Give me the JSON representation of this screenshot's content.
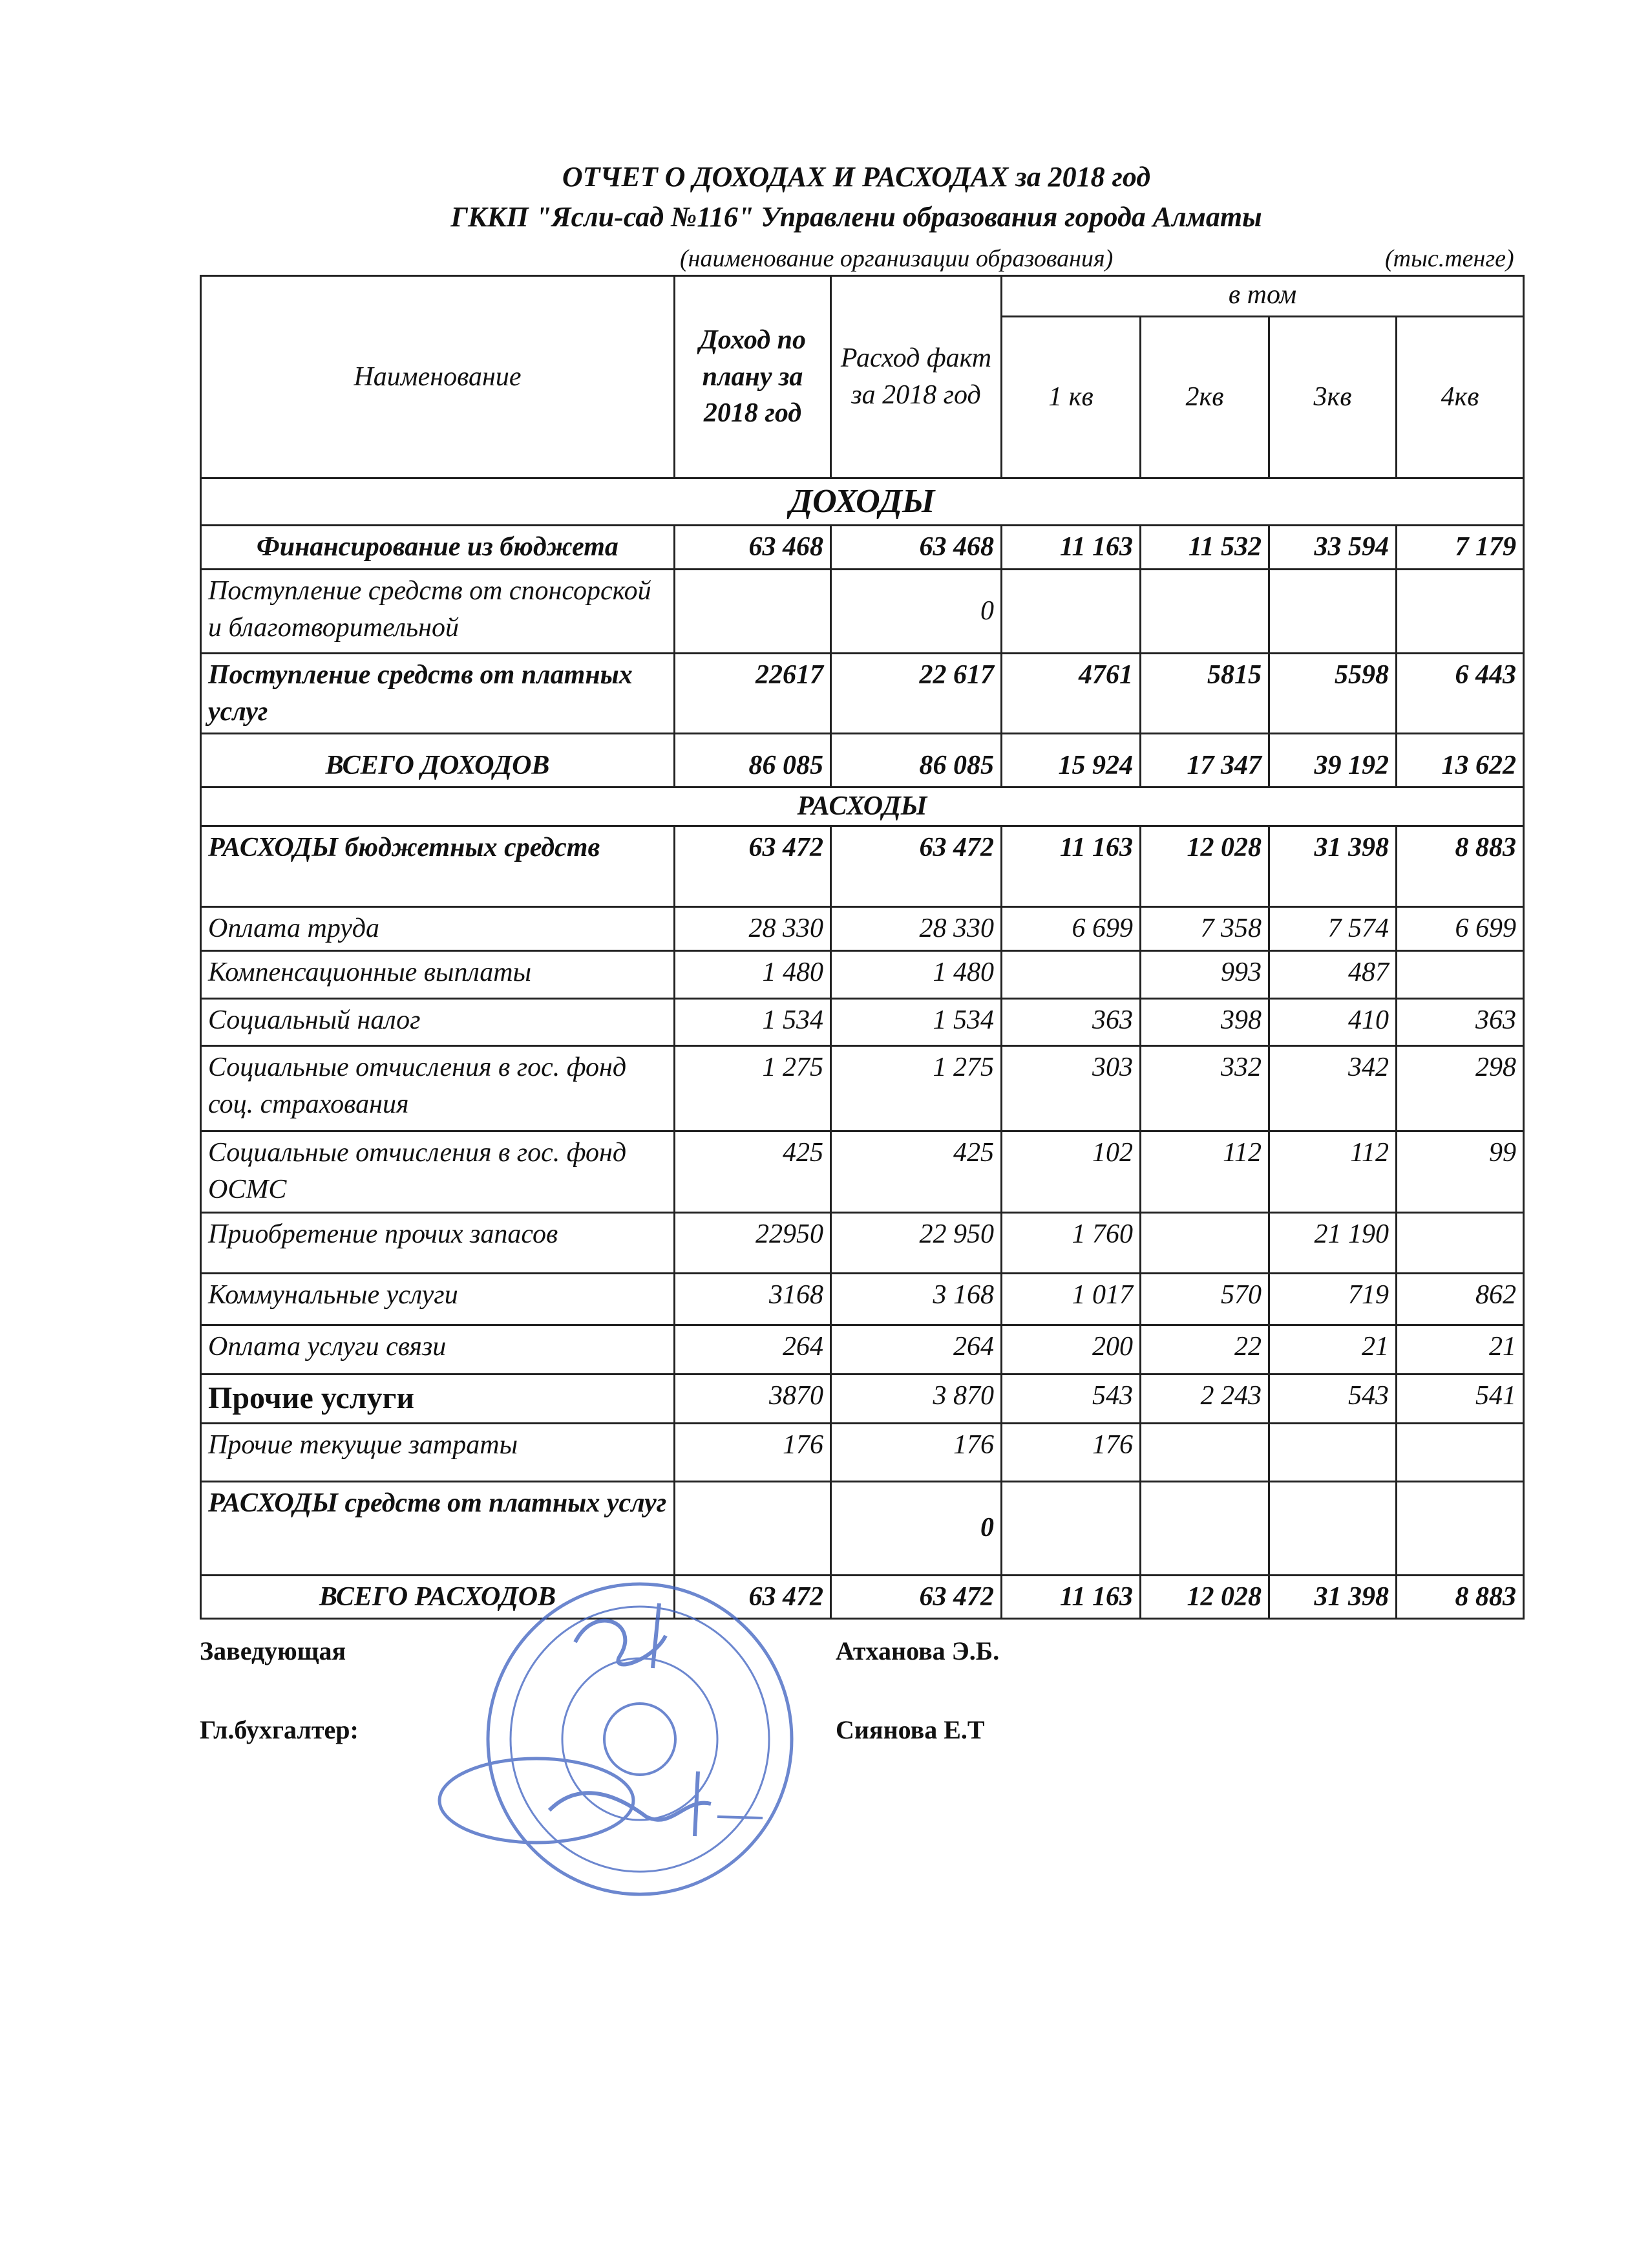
{
  "title": "ОТЧЕТ О ДОХОДАХ И РАСХОДАХ за  2018 год",
  "organization": "ГККП \"Ясли-сад №116\" Управлени образования города Алматы",
  "org_caption": "(наименование организации образования)",
  "units": "(тыс.тенге)",
  "header": {
    "name": "Наименование",
    "plan": "Доход по плану за 2018 год",
    "fact": "Расход факт за 2018 год",
    "including": "в том",
    "q1": "1 кв",
    "q2": "2кв",
    "q3": "3кв",
    "q4": "4кв"
  },
  "rows": [
    {
      "section": "ДОХОДЫ",
      "size": "big"
    },
    {
      "name": "Финансирование из бюджета",
      "values": [
        "63 468",
        "63 468",
        "11 163",
        "11 532",
        "33 594",
        "7 179"
      ],
      "bold": true,
      "center": true
    },
    {
      "name": "Поступление средств от спонсорской и благотворительной",
      "values": [
        "",
        "0",
        "",
        "",
        "",
        ""
      ]
    },
    {
      "name": "Поступление средств от платных услуг",
      "values": [
        "22617",
        "22 617",
        "4761",
        "5815",
        "5598",
        "6 443"
      ],
      "bold": true
    },
    {
      "name": "ВСЕГО ДОХОДОВ",
      "values": [
        "86 085",
        "86 085",
        "15 924",
        "17 347",
        "39 192",
        "13 622"
      ],
      "bold": true,
      "center": true,
      "bottom": true
    },
    {
      "section": "РАСХОДЫ"
    },
    {
      "name": "РАСХОДЫ бюджетных средств",
      "values": [
        "63 472",
        "63 472",
        "11 163",
        "12 028",
        "31 398",
        "8 883"
      ],
      "bold": true
    },
    {
      "name": "Оплата труда",
      "values": [
        "28 330",
        "28 330",
        "6 699",
        "7 358",
        "7 574",
        "6 699"
      ]
    },
    {
      "name": "Компенсационные выплаты",
      "values": [
        "1 480",
        "1 480",
        "",
        "993",
        "487",
        ""
      ]
    },
    {
      "name": "Социальный налог",
      "values": [
        "1 534",
        "1 534",
        "363",
        "398",
        "410",
        "363"
      ]
    },
    {
      "name": "Социальные отчисления в гос. фонд соц. страхования",
      "values": [
        "1 275",
        "1 275",
        "303",
        "332",
        "342",
        "298"
      ]
    },
    {
      "name": "Социальные отчисления в гос. фонд ОСМС",
      "values": [
        "425",
        "425",
        "102",
        "112",
        "112",
        "99"
      ]
    },
    {
      "name": "Приобретение прочих запасов",
      "values": [
        "22950",
        "22 950",
        "1 760",
        "",
        "21 190",
        ""
      ]
    },
    {
      "name": "Коммунальные услуги",
      "values": [
        "3168",
        "3 168",
        "1 017",
        "570",
        "719",
        "862"
      ]
    },
    {
      "name": "Оплата услуги связи",
      "values": [
        "264",
        "264",
        "200",
        "22",
        "21",
        "21"
      ]
    },
    {
      "name": "Прочие услуги",
      "values": [
        "3870",
        "3 870",
        "543",
        "2 243",
        "543",
        "541"
      ],
      "big": true
    },
    {
      "name": "Прочие текущие затраты",
      "values": [
        "176",
        "176",
        "176",
        "",
        "",
        ""
      ]
    },
    {
      "name": "РАСХОДЫ  средств от платных услуг",
      "values": [
        "",
        "0",
        "",
        "",
        "",
        ""
      ],
      "bold": true
    },
    {
      "name": "ВСЕГО РАСХОДОВ",
      "values": [
        "63 472",
        "63 472",
        "11 163",
        "12 028",
        "31 398",
        "8 883"
      ],
      "bold": true,
      "center": true
    }
  ],
  "signatures": {
    "head_title": "Заведующая",
    "head_name": "Атханова Э.Б.",
    "accountant_title": "Гл.бухгалтер:",
    "accountant_name": "Сиянова Е.Т"
  },
  "stamp_color": "#3b5fc0"
}
